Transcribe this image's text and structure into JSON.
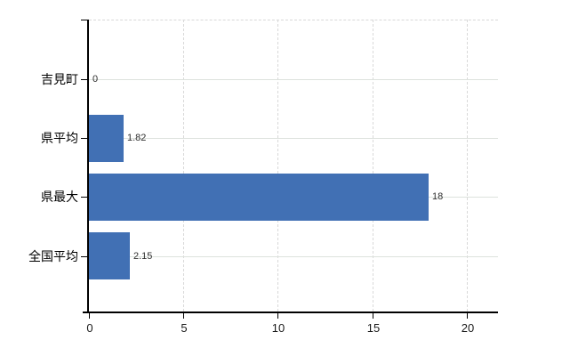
{
  "chart_data": {
    "type": "bar",
    "orientation": "horizontal",
    "title": "",
    "xlabel": "",
    "ylabel": "",
    "categories": [
      "吉見町",
      "県平均",
      "県最大",
      "全国平均"
    ],
    "values": [
      0,
      1.82,
      18,
      2.15
    ],
    "value_labels": [
      "0",
      "1.82",
      "18",
      "2.15"
    ],
    "x_ticks": [
      0,
      5,
      10,
      15,
      20
    ],
    "x_tick_labels": [
      "0",
      "5",
      "10",
      "15",
      "20"
    ],
    "xlim": [
      0,
      21.65
    ],
    "grid": true,
    "legend": false,
    "bar_color": "#4170b4",
    "grid_color": "#d9d9d9",
    "axis_color": "#000000",
    "background_color": "#ffffff",
    "value_label_color": "#303030",
    "tick_label_color": "#1a1a1a",
    "category_label_color": "#000000"
  }
}
